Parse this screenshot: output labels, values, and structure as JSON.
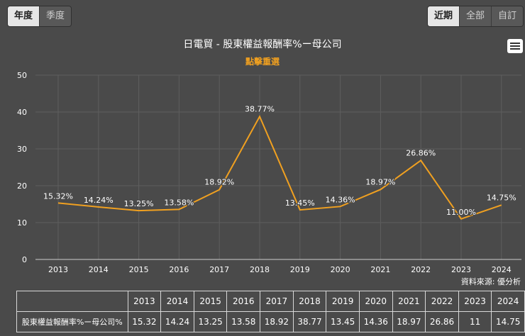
{
  "period_tabs": [
    {
      "label": "年度",
      "active": true
    },
    {
      "label": "季度",
      "active": false
    }
  ],
  "range_tabs": [
    {
      "label": "近期",
      "active": true
    },
    {
      "label": "全部",
      "active": false
    },
    {
      "label": "自訂",
      "active": false
    }
  ],
  "source_note": "資料來源: 優分析",
  "colors": {
    "line": "#f0a020",
    "background": "#4a4a4a",
    "grid": "#5e5e5e",
    "reset_text": "#f0a020"
  },
  "chart_data": {
    "type": "line",
    "title": "日電貿 - 股東權益報酬率%ー母公司",
    "subtitle": "點擊重選",
    "categories": [
      "2013",
      "2014",
      "2015",
      "2016",
      "2017",
      "2018",
      "2019",
      "2020",
      "2021",
      "2022",
      "2023",
      "2024"
    ],
    "series": [
      {
        "name": "股東權益報酬率%ー母公司%",
        "values": [
          15.32,
          14.24,
          13.25,
          13.58,
          18.92,
          38.77,
          13.45,
          14.36,
          18.97,
          26.86,
          11.0,
          14.75
        ],
        "data_labels": [
          "15.32%",
          "14.24%",
          "13.25%",
          "13.58%",
          "18.92%",
          "38.77%",
          "13.45%",
          "14.36%",
          "18.97%",
          "26.86%",
          "11.00%",
          "14.75%"
        ]
      }
    ],
    "ylim": [
      0,
      50
    ],
    "yticks": [
      "0",
      "10",
      "20",
      "30",
      "40",
      "50"
    ],
    "grid": true,
    "legend": "none"
  },
  "table": {
    "header": [
      "",
      "2013",
      "2014",
      "2015",
      "2016",
      "2017",
      "2018",
      "2019",
      "2020",
      "2021",
      "2022",
      "2023",
      "2024"
    ],
    "rows": [
      [
        "股東權益報酬率%ー母公司%",
        "15.32",
        "14.24",
        "13.25",
        "13.58",
        "18.92",
        "38.77",
        "13.45",
        "14.36",
        "18.97",
        "26.86",
        "11",
        "14.75"
      ]
    ]
  }
}
